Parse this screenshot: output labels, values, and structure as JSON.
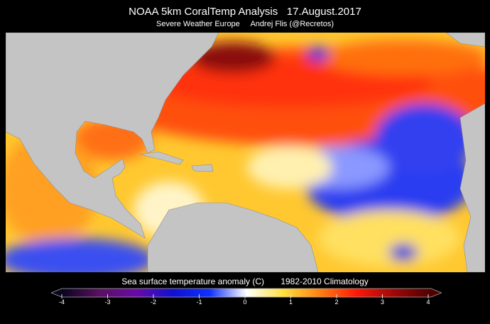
{
  "header": {
    "title": "NOAA 5km CoralTemp Analysis   17.August.2017",
    "subtitle": "Severe Weather Europe     Andrej Flis (@Recretos)"
  },
  "colorbar": {
    "label": "Sea surface temperature anomaly (C)       1982-2010 Climatology",
    "min": -4,
    "max": 4,
    "ticks": [
      "-4",
      "-3",
      "-2",
      "-1",
      "0",
      "1",
      "2",
      "3",
      "4"
    ],
    "colors": [
      "#0a0520",
      "#5a1060",
      "#6a0aa8",
      "#1010d0",
      "#1030ff",
      "#ffffff",
      "#ffe040",
      "#ff8010",
      "#ff1808",
      "#a00808",
      "#500000"
    ]
  },
  "map": {
    "land_color": "#c4c4c4",
    "background": "#000000"
  }
}
